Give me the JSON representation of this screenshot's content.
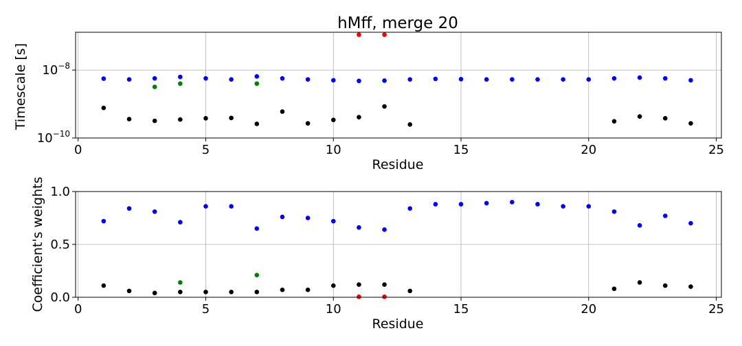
{
  "chart_data": [
    {
      "type": "scatter",
      "title": "hMff, merge 20",
      "xlabel": "Residue",
      "ylabel": "Timescale [s]",
      "xlim": [
        -0.1,
        25.2
      ],
      "xticks": [
        0,
        5,
        10,
        15,
        20,
        25
      ],
      "yscale": "log",
      "ylim": [
        1e-10,
        1.3e-07
      ],
      "yticks": [
        {
          "base": "10",
          "exp": "−10",
          "value": 1e-10
        },
        {
          "base": "10",
          "exp": "−8",
          "value": 1e-08
        }
      ],
      "grid": true,
      "series": [
        {
          "color": "#0000ff",
          "x": [
            1,
            2,
            3,
            4,
            5,
            6,
            7,
            8,
            9,
            10,
            11,
            12,
            13,
            14,
            15,
            16,
            17,
            18,
            19,
            20,
            21,
            22,
            23,
            24
          ],
          "y": [
            5.6e-09,
            5.3e-09,
            5.7e-09,
            6.3e-09,
            5.7e-09,
            5.3e-09,
            6.5e-09,
            5.7e-09,
            5.3e-09,
            5e-09,
            4.8e-09,
            4.9e-09,
            5.3e-09,
            5.5e-09,
            5.4e-09,
            5.3e-09,
            5.3e-09,
            5.3e-09,
            5.3e-09,
            5.3e-09,
            5.7e-09,
            6e-09,
            5.7e-09,
            5e-09
          ]
        },
        {
          "color": "#008000",
          "x": [
            3,
            4,
            7
          ],
          "y": [
            3.2e-09,
            4e-09,
            4e-09
          ]
        },
        {
          "color": "#ff0000",
          "x": [
            11,
            12
          ],
          "y": [
            1.1e-07,
            1.1e-07
          ]
        },
        {
          "color": "#000000",
          "x": [
            1,
            2,
            3,
            4,
            5,
            6,
            7,
            8,
            9,
            10,
            11,
            12,
            13,
            21,
            22,
            23,
            24
          ],
          "y": [
            7.7e-10,
            3.6e-10,
            3.2e-10,
            3.5e-10,
            3.8e-10,
            3.9e-10,
            2.6e-10,
            6e-10,
            2.7e-10,
            3.4e-10,
            4.1e-10,
            8.5e-10,
            2.5e-10,
            3.1e-10,
            4.3e-10,
            3.8e-10,
            2.7e-10
          ]
        }
      ]
    },
    {
      "type": "scatter",
      "xlabel": "Residue",
      "ylabel": "Coefficient's weights",
      "xlim": [
        -0.1,
        25.2
      ],
      "xticks": [
        0,
        5,
        10,
        15,
        20,
        25
      ],
      "ylim": [
        0,
        1.0
      ],
      "yticks": [
        "0.0",
        "0.5",
        "1.0"
      ],
      "grid": true,
      "series": [
        {
          "color": "#0000ff",
          "x": [
            1,
            2,
            3,
            4,
            5,
            6,
            7,
            8,
            9,
            10,
            11,
            12,
            13,
            14,
            15,
            16,
            17,
            18,
            19,
            20,
            21,
            22,
            23,
            24
          ],
          "y": [
            0.72,
            0.84,
            0.81,
            0.71,
            0.86,
            0.86,
            0.65,
            0.76,
            0.75,
            0.72,
            0.66,
            0.64,
            0.84,
            0.88,
            0.88,
            0.89,
            0.9,
            0.88,
            0.86,
            0.86,
            0.81,
            0.68,
            0.77,
            0.7
          ]
        },
        {
          "color": "#008000",
          "x": [
            3,
            4,
            7
          ],
          "y": [
            0.04,
            0.14,
            0.21
          ]
        },
        {
          "color": "#ff0000",
          "x": [
            11,
            12
          ],
          "y": [
            0.005,
            0.005
          ]
        },
        {
          "color": "#000000",
          "x": [
            1,
            2,
            3,
            4,
            5,
            6,
            7,
            8,
            9,
            10,
            11,
            12,
            13,
            21,
            22,
            23,
            24
          ],
          "y": [
            0.11,
            0.06,
            0.04,
            0.05,
            0.05,
            0.05,
            0.05,
            0.07,
            0.07,
            0.11,
            0.12,
            0.12,
            0.06,
            0.08,
            0.14,
            0.11,
            0.1
          ]
        }
      ]
    }
  ]
}
